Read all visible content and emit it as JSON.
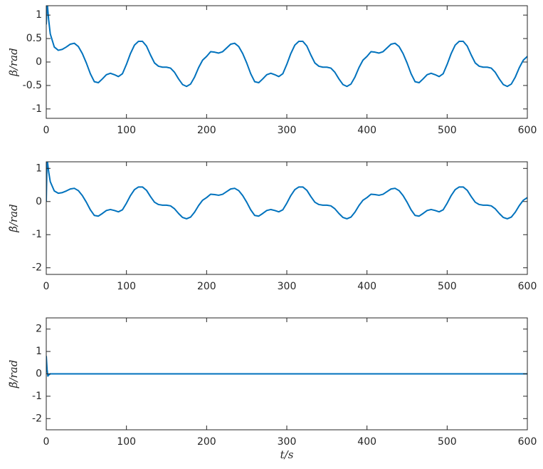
{
  "chart_data": [
    {
      "type": "line",
      "color": "#0072bd",
      "ylabel": "β/rad",
      "x": [
        0,
        1,
        2,
        3,
        5,
        10,
        15,
        20,
        25,
        30,
        35,
        40,
        45,
        50,
        55,
        60,
        65,
        70,
        75,
        80,
        85,
        90,
        95,
        100,
        105,
        110,
        115,
        120,
        125,
        130,
        135,
        140,
        145,
        150,
        155,
        160,
        165,
        170,
        175,
        180,
        185,
        190,
        195,
        200,
        205,
        210,
        215,
        220,
        225,
        230,
        235,
        240,
        245,
        250,
        255,
        260,
        265,
        270,
        275,
        280,
        285,
        290,
        295,
        300,
        305,
        310,
        315,
        320,
        325,
        330,
        335,
        340,
        345,
        350,
        355,
        360,
        365,
        370,
        375,
        380,
        385,
        390,
        395,
        400,
        405,
        410,
        415,
        420,
        425,
        430,
        435,
        440,
        445,
        450,
        455,
        460,
        465,
        470,
        475,
        480,
        485,
        490,
        495,
        500,
        505,
        510,
        515,
        520,
        525,
        530,
        535,
        540,
        545,
        550,
        555,
        560,
        565,
        570,
        575,
        580,
        585,
        590,
        595,
        600
      ],
      "values": [
        0.8,
        1.3,
        1.1,
        0.9,
        0.6,
        0.32,
        0.25,
        0.27,
        0.32,
        0.38,
        0.4,
        0.33,
        0.18,
        -0.02,
        -0.25,
        -0.42,
        -0.44,
        -0.36,
        -0.27,
        -0.24,
        -0.27,
        -0.31,
        -0.25,
        -0.05,
        0.18,
        0.36,
        0.44,
        0.44,
        0.34,
        0.15,
        -0.02,
        -0.09,
        -0.11,
        -0.11,
        -0.13,
        -0.22,
        -0.36,
        -0.48,
        -0.52,
        -0.47,
        -0.32,
        -0.12,
        0.04,
        0.12,
        0.22,
        0.21,
        0.19,
        0.22,
        0.3,
        0.38,
        0.4,
        0.33,
        0.18,
        -0.02,
        -0.25,
        -0.42,
        -0.44,
        -0.36,
        -0.27,
        -0.24,
        -0.27,
        -0.31,
        -0.25,
        -0.05,
        0.18,
        0.36,
        0.44,
        0.44,
        0.34,
        0.15,
        -0.02,
        -0.09,
        -0.11,
        -0.11,
        -0.13,
        -0.22,
        -0.36,
        -0.48,
        -0.52,
        -0.47,
        -0.32,
        -0.12,
        0.04,
        0.12,
        0.22,
        0.21,
        0.19,
        0.22,
        0.3,
        0.38,
        0.4,
        0.33,
        0.18,
        -0.02,
        -0.25,
        -0.42,
        -0.44,
        -0.36,
        -0.27,
        -0.24,
        -0.27,
        -0.31,
        -0.25,
        -0.05,
        0.18,
        0.36,
        0.44,
        0.44,
        0.34,
        0.15,
        -0.02,
        -0.09,
        -0.11,
        -0.11,
        -0.13,
        -0.22,
        -0.36,
        -0.48,
        -0.52,
        -0.47,
        -0.32,
        -0.12,
        0.04,
        0.12
      ],
      "xlim": [
        0,
        600
      ],
      "xticks": [
        0,
        100,
        200,
        300,
        400,
        500,
        600
      ],
      "ylim": [
        -1.2,
        1.2
      ],
      "yticks": [
        -1,
        -0.5,
        0,
        0.5,
        1
      ]
    },
    {
      "type": "line",
      "color": "#0072bd",
      "ylabel": "β̂/rad",
      "x": [
        0,
        1,
        2,
        3,
        5,
        10,
        15,
        20,
        25,
        30,
        35,
        40,
        45,
        50,
        55,
        60,
        65,
        70,
        75,
        80,
        85,
        90,
        95,
        100,
        105,
        110,
        115,
        120,
        125,
        130,
        135,
        140,
        145,
        150,
        155,
        160,
        165,
        170,
        175,
        180,
        185,
        190,
        195,
        200,
        205,
        210,
        215,
        220,
        225,
        230,
        235,
        240,
        245,
        250,
        255,
        260,
        265,
        270,
        275,
        280,
        285,
        290,
        295,
        300,
        305,
        310,
        315,
        320,
        325,
        330,
        335,
        340,
        345,
        350,
        355,
        360,
        365,
        370,
        375,
        380,
        385,
        390,
        395,
        400,
        405,
        410,
        415,
        420,
        425,
        430,
        435,
        440,
        445,
        450,
        455,
        460,
        465,
        470,
        475,
        480,
        485,
        490,
        495,
        500,
        505,
        510,
        515,
        520,
        525,
        530,
        535,
        540,
        545,
        550,
        555,
        560,
        565,
        570,
        575,
        580,
        585,
        590,
        595,
        600
      ],
      "values": [
        0.0,
        1.3,
        1.1,
        0.9,
        0.6,
        0.32,
        0.25,
        0.27,
        0.32,
        0.38,
        0.4,
        0.33,
        0.18,
        -0.02,
        -0.25,
        -0.42,
        -0.44,
        -0.36,
        -0.27,
        -0.24,
        -0.27,
        -0.31,
        -0.25,
        -0.05,
        0.18,
        0.36,
        0.44,
        0.44,
        0.34,
        0.15,
        -0.02,
        -0.09,
        -0.11,
        -0.11,
        -0.13,
        -0.22,
        -0.36,
        -0.48,
        -0.52,
        -0.47,
        -0.32,
        -0.12,
        0.04,
        0.12,
        0.22,
        0.21,
        0.19,
        0.22,
        0.3,
        0.38,
        0.4,
        0.33,
        0.18,
        -0.02,
        -0.25,
        -0.42,
        -0.44,
        -0.36,
        -0.27,
        -0.24,
        -0.27,
        -0.31,
        -0.25,
        -0.05,
        0.18,
        0.36,
        0.44,
        0.44,
        0.34,
        0.15,
        -0.02,
        -0.09,
        -0.11,
        -0.11,
        -0.13,
        -0.22,
        -0.36,
        -0.48,
        -0.52,
        -0.47,
        -0.32,
        -0.12,
        0.04,
        0.12,
        0.22,
        0.21,
        0.19,
        0.22,
        0.3,
        0.38,
        0.4,
        0.33,
        0.18,
        -0.02,
        -0.25,
        -0.42,
        -0.44,
        -0.36,
        -0.27,
        -0.24,
        -0.27,
        -0.31,
        -0.25,
        -0.05,
        0.18,
        0.36,
        0.44,
        0.44,
        0.34,
        0.15,
        -0.02,
        -0.09,
        -0.11,
        -0.11,
        -0.13,
        -0.22,
        -0.36,
        -0.48,
        -0.52,
        -0.47,
        -0.32,
        -0.12,
        0.04,
        0.12
      ],
      "xlim": [
        0,
        600
      ],
      "xticks": [
        0,
        100,
        200,
        300,
        400,
        500,
        600
      ],
      "ylim": [
        -2.2,
        1.2
      ],
      "yticks": [
        -2,
        -1,
        0,
        1
      ]
    },
    {
      "type": "line",
      "color": "#0072bd",
      "ylabel": "β̃/rad",
      "xlabel": "t/s",
      "x": [
        0,
        1,
        2,
        3,
        5,
        10,
        15,
        20,
        25,
        30,
        35,
        40,
        45,
        50,
        55,
        60,
        65,
        70,
        75,
        80,
        85,
        90,
        95,
        100,
        105,
        110,
        115,
        120,
        125,
        130,
        135,
        140,
        145,
        150,
        155,
        160,
        165,
        170,
        175,
        180,
        185,
        190,
        195,
        200,
        205,
        210,
        215,
        220,
        225,
        230,
        235,
        240,
        245,
        250,
        255,
        260,
        265,
        270,
        275,
        280,
        285,
        290,
        295,
        300,
        305,
        310,
        315,
        320,
        325,
        330,
        335,
        340,
        345,
        350,
        355,
        360,
        365,
        370,
        375,
        380,
        385,
        390,
        395,
        400,
        405,
        410,
        415,
        420,
        425,
        430,
        435,
        440,
        445,
        450,
        455,
        460,
        465,
        470,
        475,
        480,
        485,
        490,
        495,
        500,
        505,
        510,
        515,
        520,
        525,
        530,
        535,
        540,
        545,
        550,
        555,
        560,
        565,
        570,
        575,
        580,
        585,
        590,
        595,
        600
      ],
      "values": [
        0.8,
        0.2,
        -0.1,
        -0.05,
        0,
        0,
        0,
        0,
        0,
        0,
        0,
        0,
        0,
        0,
        0,
        0,
        0,
        0,
        0,
        0,
        0,
        0,
        0,
        0,
        0,
        0,
        0,
        0,
        0,
        0,
        0,
        0,
        0,
        0,
        0,
        0,
        0,
        0,
        0,
        0,
        0,
        0,
        0,
        0,
        0,
        0,
        0,
        0,
        0,
        0,
        0,
        0,
        0,
        0,
        0,
        0,
        0,
        0,
        0,
        0,
        0,
        0,
        0,
        0,
        0,
        0,
        0,
        0,
        0,
        0,
        0,
        0,
        0,
        0,
        0,
        0,
        0,
        0,
        0,
        0,
        0,
        0,
        0,
        0,
        0,
        0,
        0,
        0,
        0,
        0,
        0,
        0,
        0,
        0,
        0,
        0,
        0,
        0,
        0,
        0,
        0,
        0,
        0,
        0,
        0,
        0,
        0,
        0,
        0,
        0,
        0,
        0,
        0,
        0,
        0,
        0,
        0,
        0,
        0,
        0,
        0,
        0,
        0,
        0
      ],
      "xlim": [
        0,
        600
      ],
      "xticks": [
        0,
        100,
        200,
        300,
        400,
        500,
        600
      ],
      "ylim": [
        -2.5,
        2.5
      ],
      "yticks": [
        -2,
        -1,
        0,
        1,
        2
      ]
    }
  ]
}
